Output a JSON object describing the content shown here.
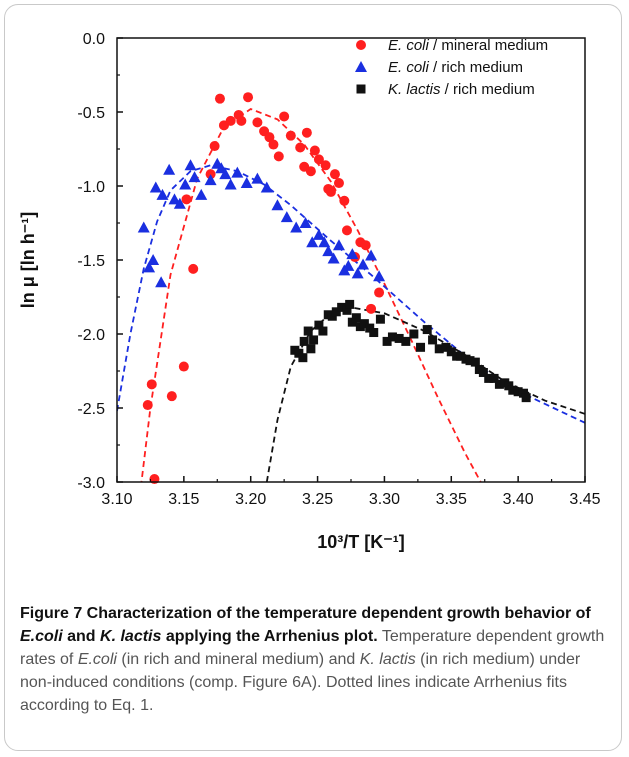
{
  "chart_data": {
    "type": "scatter",
    "xlabel": "10³/T   [K⁻¹]",
    "ylabel": "ln μ   [ln h⁻¹]",
    "xlim": [
      3.1,
      3.45
    ],
    "ylim": [
      -3.0,
      0.0
    ],
    "xticks": [
      "3.10",
      "3.15",
      "3.20",
      "3.25",
      "3.30",
      "3.35",
      "3.40",
      "3.45"
    ],
    "yticks": [
      "0.0",
      "-0.5",
      "-1.0",
      "-1.5",
      "-2.0",
      "-2.5",
      "-3.0"
    ],
    "grid": false,
    "legend_position": "top-right",
    "series": [
      {
        "name_italic": "E. coli",
        "name_rest": " / mineral medium",
        "color": "#ff1f1f",
        "marker": "circle",
        "points": [
          [
            3.123,
            -2.48
          ],
          [
            3.126,
            -2.34
          ],
          [
            3.128,
            -2.98
          ],
          [
            3.141,
            -2.42
          ],
          [
            3.15,
            -2.22
          ],
          [
            3.152,
            -1.09
          ],
          [
            3.157,
            -1.56
          ],
          [
            3.17,
            -0.92
          ],
          [
            3.173,
            -0.73
          ],
          [
            3.177,
            -0.41
          ],
          [
            3.18,
            -0.59
          ],
          [
            3.185,
            -0.56
          ],
          [
            3.191,
            -0.52
          ],
          [
            3.193,
            -0.56
          ],
          [
            3.198,
            -0.4
          ],
          [
            3.205,
            -0.57
          ],
          [
            3.21,
            -0.63
          ],
          [
            3.214,
            -0.67
          ],
          [
            3.217,
            -0.72
          ],
          [
            3.221,
            -0.8
          ],
          [
            3.225,
            -0.53
          ],
          [
            3.23,
            -0.66
          ],
          [
            3.237,
            -0.74
          ],
          [
            3.24,
            -0.87
          ],
          [
            3.242,
            -0.64
          ],
          [
            3.245,
            -0.9
          ],
          [
            3.248,
            -0.76
          ],
          [
            3.251,
            -0.82
          ],
          [
            3.256,
            -0.86
          ],
          [
            3.258,
            -1.02
          ],
          [
            3.26,
            -1.04
          ],
          [
            3.263,
            -0.92
          ],
          [
            3.266,
            -0.98
          ],
          [
            3.27,
            -1.1
          ],
          [
            3.272,
            -1.3
          ],
          [
            3.278,
            -1.48
          ],
          [
            3.282,
            -1.38
          ],
          [
            3.286,
            -1.4
          ],
          [
            3.29,
            -1.83
          ],
          [
            3.296,
            -1.72
          ]
        ],
        "fit": [
          [
            3.117,
            -3.1
          ],
          [
            3.125,
            -2.5
          ],
          [
            3.14,
            -1.6
          ],
          [
            3.16,
            -0.95
          ],
          [
            3.18,
            -0.6
          ],
          [
            3.2,
            -0.48
          ],
          [
            3.22,
            -0.55
          ],
          [
            3.24,
            -0.72
          ],
          [
            3.26,
            -0.97
          ],
          [
            3.28,
            -1.3
          ],
          [
            3.3,
            -1.66
          ],
          [
            3.32,
            -2.04
          ],
          [
            3.34,
            -2.43
          ],
          [
            3.36,
            -2.8
          ],
          [
            3.372,
            -3.0
          ]
        ]
      },
      {
        "name_italic": "E. coli",
        "name_rest": " / rich medium",
        "color": "#1a2fe0",
        "marker": "triangle",
        "points": [
          [
            3.12,
            -1.28
          ],
          [
            3.124,
            -1.55
          ],
          [
            3.127,
            -1.5
          ],
          [
            3.129,
            -1.01
          ],
          [
            3.133,
            -1.65
          ],
          [
            3.134,
            -1.06
          ],
          [
            3.139,
            -0.89
          ],
          [
            3.143,
            -1.09
          ],
          [
            3.147,
            -1.12
          ],
          [
            3.151,
            -0.99
          ],
          [
            3.155,
            -0.86
          ],
          [
            3.158,
            -0.94
          ],
          [
            3.163,
            -1.06
          ],
          [
            3.17,
            -0.96
          ],
          [
            3.175,
            -0.85
          ],
          [
            3.178,
            -0.88
          ],
          [
            3.181,
            -0.92
          ],
          [
            3.185,
            -0.99
          ],
          [
            3.19,
            -0.91
          ],
          [
            3.197,
            -0.98
          ],
          [
            3.205,
            -0.95
          ],
          [
            3.212,
            -1.01
          ],
          [
            3.22,
            -1.13
          ],
          [
            3.227,
            -1.21
          ],
          [
            3.234,
            -1.28
          ],
          [
            3.241,
            -1.25
          ],
          [
            3.246,
            -1.38
          ],
          [
            3.251,
            -1.33
          ],
          [
            3.255,
            -1.38
          ],
          [
            3.258,
            -1.44
          ],
          [
            3.262,
            -1.49
          ],
          [
            3.266,
            -1.4
          ],
          [
            3.27,
            -1.57
          ],
          [
            3.273,
            -1.54
          ],
          [
            3.276,
            -1.46
          ],
          [
            3.28,
            -1.59
          ],
          [
            3.284,
            -1.53
          ],
          [
            3.29,
            -1.47
          ],
          [
            3.296,
            -1.61
          ]
        ],
        "fit": [
          [
            3.1,
            -2.52
          ],
          [
            3.11,
            -2.0
          ],
          [
            3.12,
            -1.56
          ],
          [
            3.13,
            -1.24
          ],
          [
            3.14,
            -1.03
          ],
          [
            3.155,
            -0.9
          ],
          [
            3.17,
            -0.86
          ],
          [
            3.19,
            -0.9
          ],
          [
            3.21,
            -0.99
          ],
          [
            3.23,
            -1.13
          ],
          [
            3.26,
            -1.37
          ],
          [
            3.29,
            -1.6
          ],
          [
            3.33,
            -1.92
          ],
          [
            3.37,
            -2.22
          ],
          [
            3.41,
            -2.43
          ],
          [
            3.45,
            -2.6
          ]
        ]
      },
      {
        "name_italic": "K. lactis",
        "name_rest": " / rich medium",
        "color": "#111111",
        "marker": "square",
        "points": [
          [
            3.233,
            -2.11
          ],
          [
            3.236,
            -2.13
          ],
          [
            3.239,
            -2.16
          ],
          [
            3.24,
            -2.05
          ],
          [
            3.243,
            -1.98
          ],
          [
            3.245,
            -2.1
          ],
          [
            3.247,
            -2.04
          ],
          [
            3.251,
            -1.94
          ],
          [
            3.254,
            -1.98
          ],
          [
            3.258,
            -1.87
          ],
          [
            3.261,
            -1.88
          ],
          [
            3.264,
            -1.85
          ],
          [
            3.268,
            -1.82
          ],
          [
            3.272,
            -1.84
          ],
          [
            3.274,
            -1.8
          ],
          [
            3.276,
            -1.92
          ],
          [
            3.279,
            -1.89
          ],
          [
            3.282,
            -1.95
          ],
          [
            3.285,
            -1.93
          ],
          [
            3.289,
            -1.96
          ],
          [
            3.292,
            -1.99
          ],
          [
            3.297,
            -1.9
          ],
          [
            3.302,
            -2.05
          ],
          [
            3.306,
            -2.02
          ],
          [
            3.311,
            -2.03
          ],
          [
            3.316,
            -2.05
          ],
          [
            3.322,
            -2.0
          ],
          [
            3.327,
            -2.09
          ],
          [
            3.332,
            -1.97
          ],
          [
            3.336,
            -2.04
          ],
          [
            3.341,
            -2.1
          ],
          [
            3.346,
            -2.09
          ],
          [
            3.35,
            -2.12
          ],
          [
            3.354,
            -2.15
          ],
          [
            3.357,
            -2.15
          ],
          [
            3.361,
            -2.17
          ],
          [
            3.364,
            -2.18
          ],
          [
            3.368,
            -2.19
          ],
          [
            3.371,
            -2.24
          ],
          [
            3.374,
            -2.26
          ],
          [
            3.378,
            -2.3
          ],
          [
            3.382,
            -2.3
          ],
          [
            3.386,
            -2.34
          ],
          [
            3.39,
            -2.33
          ],
          [
            3.393,
            -2.35
          ],
          [
            3.396,
            -2.38
          ],
          [
            3.4,
            -2.39
          ],
          [
            3.404,
            -2.4
          ],
          [
            3.406,
            -2.43
          ]
        ],
        "fit": [
          [
            3.212,
            -3.0
          ],
          [
            3.22,
            -2.58
          ],
          [
            3.23,
            -2.22
          ],
          [
            3.245,
            -1.98
          ],
          [
            3.26,
            -1.86
          ],
          [
            3.275,
            -1.82
          ],
          [
            3.3,
            -1.86
          ],
          [
            3.33,
            -1.98
          ],
          [
            3.36,
            -2.14
          ],
          [
            3.39,
            -2.32
          ],
          [
            3.42,
            -2.45
          ],
          [
            3.45,
            -2.54
          ]
        ]
      }
    ]
  },
  "caption": {
    "title_parts": [
      {
        "text": "Figure 7 Characterization of the temperature dependent growth behavior of ",
        "italic": false
      },
      {
        "text": "E.coli",
        "italic": true
      },
      {
        "text": " and ",
        "italic": false
      },
      {
        "text": "K. lactis",
        "italic": true
      },
      {
        "text": " applying the Arrhenius plot.",
        "italic": false
      }
    ],
    "body_parts": [
      {
        "text": " Temperature dependent growth rates of ",
        "italic": false
      },
      {
        "text": "E.coli",
        "italic": true
      },
      {
        "text": " (in rich and mineral medium) and ",
        "italic": false
      },
      {
        "text": "K. lactis",
        "italic": true
      },
      {
        "text": " (in rich medium) under non-induced conditions (comp. Figure 6A). Dotted lines indicate Arrhenius fits according to Eq. 1.",
        "italic": false
      }
    ]
  }
}
